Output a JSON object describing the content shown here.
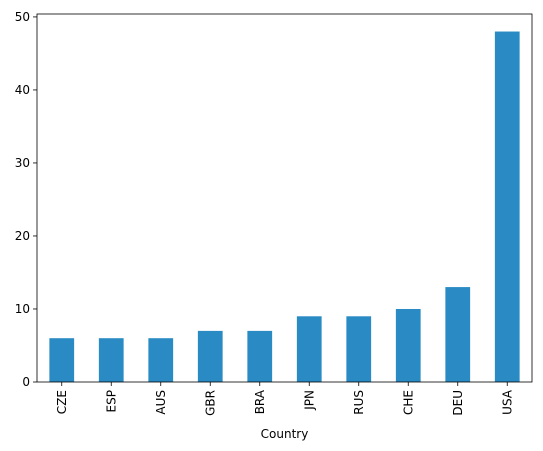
{
  "chart_data": {
    "type": "bar",
    "x_label": "Country",
    "categories": [
      "CZE",
      "ESP",
      "AUS",
      "GBR",
      "BRA",
      "JPN",
      "RUS",
      "CHE",
      "DEU",
      "USA"
    ],
    "values": [
      6,
      6,
      6,
      7,
      7,
      9,
      9,
      10,
      13,
      48
    ],
    "color": "#2a8bc4",
    "ylim": [
      0,
      50.4
    ],
    "yticks": [
      0,
      10,
      20,
      30,
      40,
      50
    ],
    "grid": false
  }
}
